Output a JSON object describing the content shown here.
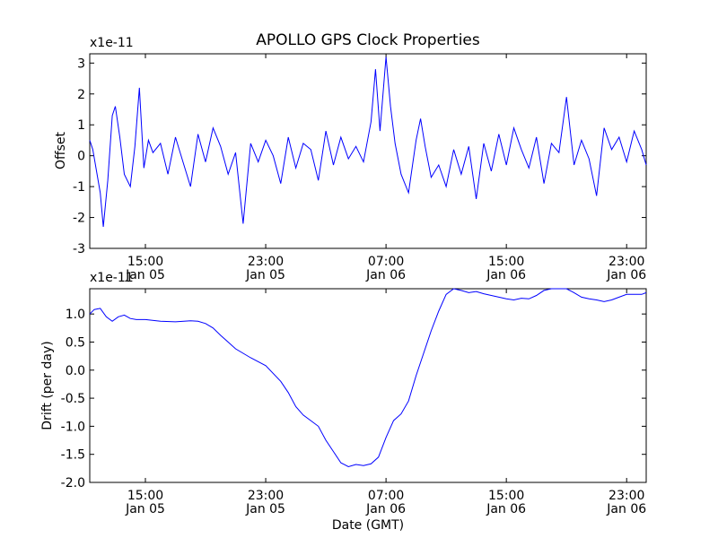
{
  "title": "APOLLO GPS Clock Properties",
  "chart_data": [
    {
      "type": "line",
      "ylabel": "Offset",
      "xlabel": "",
      "y_multiplier": "x1e-11",
      "ylim": [
        -3,
        3.3
      ],
      "xlim": [
        11.3,
        48.3
      ],
      "x_unit": "hours since Jan 05 00:00 GMT",
      "yticks": [
        -3,
        -2,
        -1,
        0,
        1,
        2,
        3
      ],
      "ytick_labels": [
        "-3",
        "-2",
        "-1",
        "0",
        "1",
        "2",
        "3"
      ],
      "xticks": [
        15,
        23,
        31,
        39,
        47
      ],
      "xtick_time_labels": [
        "15:00",
        "23:00",
        "07:00",
        "15:00",
        "23:00"
      ],
      "xtick_date_labels": [
        "Jan 05",
        "Jan 05",
        "Jan 06",
        "Jan 06",
        "Jan 06"
      ],
      "line_color": "#0000ff",
      "series": [
        {
          "name": "offset",
          "x": [
            11.3,
            11.5,
            12.0,
            12.2,
            12.5,
            12.8,
            13.0,
            13.3,
            13.6,
            14.0,
            14.3,
            14.6,
            14.9,
            15.2,
            15.5,
            16.0,
            16.5,
            17.0,
            17.5,
            18.0,
            18.5,
            19.0,
            19.5,
            20.0,
            20.5,
            21.0,
            21.5,
            22.0,
            22.5,
            23.0,
            23.5,
            24.0,
            24.5,
            25.0,
            25.5,
            26.0,
            26.5,
            27.0,
            27.5,
            28.0,
            28.5,
            29.0,
            29.5,
            30.0,
            30.3,
            30.6,
            31.0,
            31.3,
            31.6,
            32.0,
            32.5,
            33.0,
            33.3,
            33.6,
            34.0,
            34.5,
            35.0,
            35.5,
            36.0,
            36.5,
            37.0,
            37.5,
            38.0,
            38.5,
            39.0,
            39.5,
            40.0,
            40.5,
            41.0,
            41.5,
            42.0,
            42.5,
            43.0,
            43.5,
            44.0,
            44.5,
            45.0,
            45.5,
            46.0,
            46.5,
            47.0,
            47.5,
            48.0,
            48.3
          ],
          "values": [
            0.5,
            0.2,
            -1.2,
            -2.3,
            -0.8,
            1.3,
            1.6,
            0.6,
            -0.6,
            -1.0,
            0.3,
            2.2,
            -0.4,
            0.5,
            0.1,
            0.4,
            -0.6,
            0.6,
            -0.2,
            -1.0,
            0.7,
            -0.2,
            0.9,
            0.3,
            -0.6,
            0.1,
            -2.2,
            0.4,
            -0.2,
            0.5,
            0.0,
            -0.9,
            0.6,
            -0.4,
            0.4,
            0.2,
            -0.8,
            0.8,
            -0.3,
            0.6,
            -0.1,
            0.3,
            -0.2,
            1.1,
            2.8,
            0.8,
            3.2,
            1.6,
            0.4,
            -0.6,
            -1.2,
            0.5,
            1.2,
            0.3,
            -0.7,
            -0.3,
            -1.0,
            0.2,
            -0.6,
            0.3,
            -1.4,
            0.4,
            -0.5,
            0.7,
            -0.3,
            0.9,
            0.2,
            -0.4,
            0.6,
            -0.9,
            0.4,
            0.1,
            1.9,
            -0.3,
            0.5,
            -0.1,
            -1.3,
            0.9,
            0.2,
            0.6,
            -0.2,
            0.8,
            0.2,
            -0.3
          ]
        }
      ]
    },
    {
      "type": "line",
      "ylabel": "Drift (per day)",
      "xlabel": "Date (GMT)",
      "y_multiplier": "x1e-11",
      "ylim": [
        -2.0,
        1.45
      ],
      "xlim": [
        11.3,
        48.3
      ],
      "x_unit": "hours since Jan 05 00:00 GMT",
      "yticks": [
        -2.0,
        -1.5,
        -1.0,
        -0.5,
        0.0,
        0.5,
        1.0
      ],
      "ytick_labels": [
        "-2.0",
        "-1.5",
        "-1.0",
        "-0.5",
        "0.0",
        "0.5",
        "1.0"
      ],
      "xticks": [
        15,
        23,
        31,
        39,
        47
      ],
      "xtick_time_labels": [
        "15:00",
        "23:00",
        "07:00",
        "15:00",
        "23:00"
      ],
      "xtick_date_labels": [
        "Jan 05",
        "Jan 05",
        "Jan 06",
        "Jan 06",
        "Jan 06"
      ],
      "line_color": "#0000ff",
      "series": [
        {
          "name": "drift",
          "x": [
            11.3,
            11.6,
            12.0,
            12.4,
            12.8,
            13.2,
            13.6,
            14.0,
            14.4,
            15.0,
            16.0,
            17.0,
            18.0,
            18.5,
            19.0,
            19.5,
            20.0,
            20.5,
            21.0,
            22.0,
            23.0,
            24.0,
            24.5,
            25.0,
            25.5,
            26.0,
            26.5,
            27.0,
            27.5,
            28.0,
            28.5,
            29.0,
            29.5,
            30.0,
            30.5,
            31.0,
            31.5,
            32.0,
            32.5,
            33.0,
            33.5,
            34.0,
            34.5,
            35.0,
            35.5,
            36.0,
            36.5,
            37.0,
            37.5,
            38.0,
            38.5,
            39.0,
            39.5,
            40.0,
            40.5,
            41.0,
            41.5,
            42.0,
            42.5,
            43.0,
            43.5,
            44.0,
            44.5,
            45.0,
            45.5,
            46.0,
            46.5,
            47.0,
            47.5,
            48.0,
            48.3
          ],
          "values": [
            1.0,
            1.08,
            1.1,
            0.95,
            0.87,
            0.95,
            0.98,
            0.92,
            0.9,
            0.9,
            0.87,
            0.86,
            0.88,
            0.87,
            0.83,
            0.75,
            0.62,
            0.5,
            0.38,
            0.22,
            0.08,
            -0.2,
            -0.4,
            -0.65,
            -0.8,
            -0.9,
            -1.0,
            -1.25,
            -1.45,
            -1.65,
            -1.72,
            -1.68,
            -1.7,
            -1.67,
            -1.55,
            -1.2,
            -0.9,
            -0.78,
            -0.55,
            -0.1,
            0.3,
            0.7,
            1.05,
            1.35,
            1.45,
            1.42,
            1.38,
            1.4,
            1.36,
            1.33,
            1.3,
            1.27,
            1.25,
            1.28,
            1.27,
            1.33,
            1.42,
            1.46,
            1.47,
            1.45,
            1.38,
            1.3,
            1.27,
            1.25,
            1.22,
            1.25,
            1.3,
            1.35,
            1.35,
            1.35,
            1.38
          ]
        }
      ]
    }
  ]
}
